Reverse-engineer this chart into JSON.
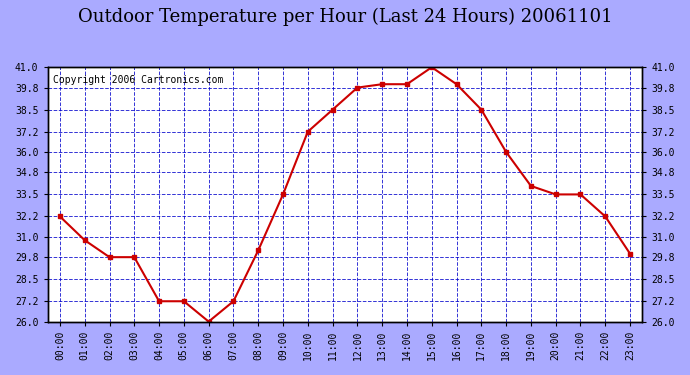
{
  "title": "Outdoor Temperature per Hour (Last 24 Hours) 20061101",
  "copyright": "Copyright 2006 Cartronics.com",
  "x_labels": [
    "00:00",
    "01:00",
    "02:00",
    "03:00",
    "04:00",
    "05:00",
    "06:00",
    "07:00",
    "08:00",
    "09:00",
    "10:00",
    "11:00",
    "12:00",
    "13:00",
    "14:00",
    "15:00",
    "16:00",
    "17:00",
    "18:00",
    "19:00",
    "20:00",
    "21:00",
    "22:00",
    "23:00"
  ],
  "y_values": [
    32.2,
    30.8,
    29.8,
    29.8,
    27.2,
    27.2,
    26.0,
    27.2,
    30.2,
    33.5,
    37.2,
    38.5,
    39.8,
    40.0,
    40.0,
    41.0,
    40.0,
    38.5,
    36.0,
    34.0,
    33.5,
    33.5,
    32.2,
    30.0
  ],
  "ylim": [
    26.0,
    41.0
  ],
  "yticks": [
    26.0,
    27.2,
    28.5,
    29.8,
    31.0,
    32.2,
    33.5,
    34.8,
    36.0,
    37.2,
    38.5,
    39.8,
    41.0
  ],
  "line_color": "#cc0000",
  "marker_color": "#cc0000",
  "bg_color": "#aaaaff",
  "plot_bg": "#ffffff",
  "grid_color": "#0000cc",
  "title_color": "#000000",
  "border_color": "#000000",
  "copyright_color": "#000000",
  "title_fontsize": 13,
  "copyright_fontsize": 7
}
